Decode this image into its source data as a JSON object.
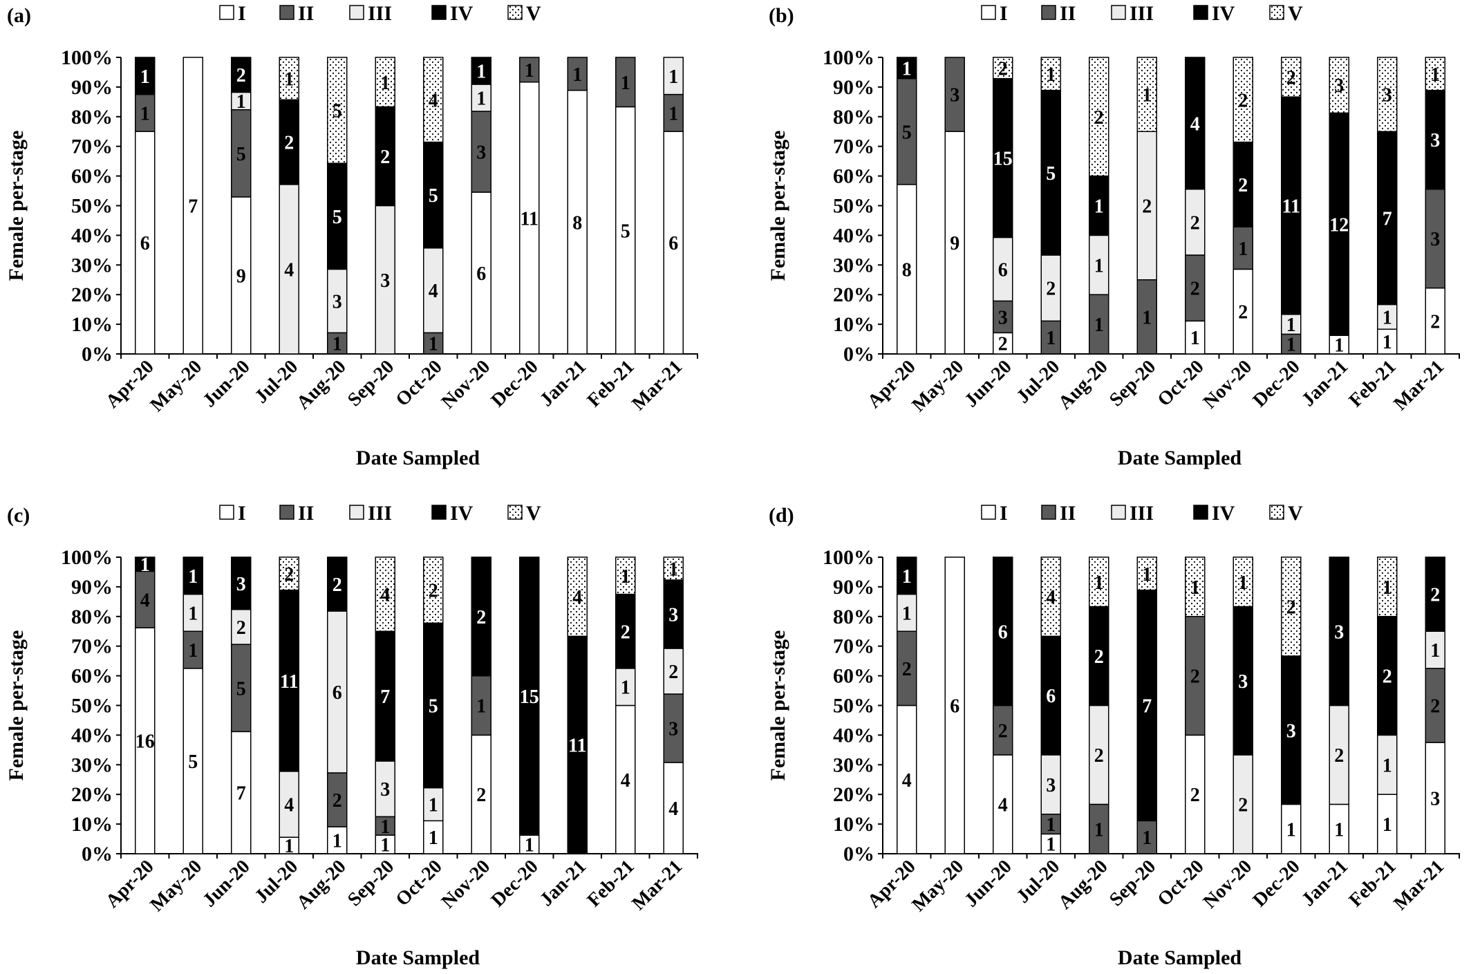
{
  "figure": {
    "panel_labels": [
      "(a)",
      "(b)",
      "(c)",
      "(d)"
    ],
    "colors": {
      "I": "#ffffff",
      "II": "#5a5a5a",
      "III": "#ececec",
      "IV": "#000000",
      "V": "dotted"
    }
  },
  "chart_data": [
    {
      "type": "bar",
      "stacked": "percent",
      "panel": "(a)",
      "xlabel": "Date Sampled",
      "ylabel": "Female per-stage",
      "ylim": [
        0,
        100
      ],
      "yticks": [
        "0%",
        "10%",
        "20%",
        "30%",
        "40%",
        "50%",
        "60%",
        "70%",
        "80%",
        "90%",
        "100%"
      ],
      "categories": [
        "Apr-20",
        "May-20",
        "Jun-20",
        "Jul-20",
        "Aug-20",
        "Sep-20",
        "Oct-20",
        "Nov-20",
        "Dec-20",
        "Jan-21",
        "Feb-21",
        "Mar-21"
      ],
      "series": [
        {
          "name": "I",
          "values": [
            6,
            7,
            9,
            0,
            0,
            0,
            0,
            6,
            11,
            8,
            5,
            6
          ]
        },
        {
          "name": "II",
          "values": [
            1,
            0,
            5,
            0,
            1,
            0,
            1,
            3,
            1,
            1,
            1,
            1
          ]
        },
        {
          "name": "III",
          "values": [
            0,
            0,
            1,
            4,
            3,
            3,
            4,
            1,
            0,
            0,
            0,
            1
          ]
        },
        {
          "name": "IV",
          "values": [
            1,
            0,
            2,
            2,
            5,
            2,
            5,
            1,
            0,
            0,
            0,
            0
          ]
        },
        {
          "name": "V",
          "values": [
            0,
            0,
            0,
            1,
            5,
            1,
            4,
            0,
            0,
            0,
            0,
            0
          ]
        }
      ],
      "legend": "top"
    },
    {
      "type": "bar",
      "stacked": "percent",
      "panel": "(b)",
      "xlabel": "Date Sampled",
      "ylabel": "Female per-stage",
      "ylim": [
        0,
        100
      ],
      "yticks": [
        "0%",
        "10%",
        "20%",
        "30%",
        "40%",
        "50%",
        "60%",
        "70%",
        "80%",
        "90%",
        "100%"
      ],
      "categories": [
        "Apr-20",
        "May-20",
        "Jun-20",
        "Jul-20",
        "Aug-20",
        "Sep-20",
        "Oct-20",
        "Nov-20",
        "Dec-20",
        "Jan-21",
        "Feb-21",
        "Mar-21"
      ],
      "series": [
        {
          "name": "I",
          "values": [
            8,
            9,
            2,
            0,
            0,
            0,
            1,
            2,
            0,
            1,
            1,
            2
          ]
        },
        {
          "name": "II",
          "values": [
            5,
            3,
            3,
            1,
            1,
            1,
            2,
            1,
            1,
            0,
            0,
            3
          ]
        },
        {
          "name": "III",
          "values": [
            0,
            0,
            6,
            2,
            1,
            2,
            2,
            0,
            1,
            0,
            1,
            0
          ]
        },
        {
          "name": "IV",
          "values": [
            1,
            0,
            15,
            5,
            1,
            0,
            4,
            2,
            11,
            12,
            7,
            3
          ]
        },
        {
          "name": "V",
          "values": [
            0,
            0,
            2,
            1,
            2,
            1,
            0,
            2,
            2,
            3,
            3,
            1
          ]
        }
      ],
      "legend": "top"
    },
    {
      "type": "bar",
      "stacked": "percent",
      "panel": "(c)",
      "xlabel": "Date Sampled",
      "ylabel": "Female per-stage",
      "ylim": [
        0,
        100
      ],
      "yticks": [
        "0%",
        "10%",
        "20%",
        "30%",
        "40%",
        "50%",
        "60%",
        "70%",
        "80%",
        "90%",
        "100%"
      ],
      "categories": [
        "Apr-20",
        "May-20",
        "Jun-20",
        "Jul-20",
        "Aug-20",
        "Sep-20",
        "Oct-20",
        "Nov-20",
        "Dec-20",
        "Jan-21",
        "Feb-21",
        "Mar-21"
      ],
      "series": [
        {
          "name": "I",
          "values": [
            16,
            5,
            7,
            1,
            1,
            1,
            1,
            2,
            1,
            0,
            4,
            4
          ]
        },
        {
          "name": "II",
          "values": [
            4,
            1,
            5,
            0,
            2,
            1,
            0,
            1,
            0,
            0,
            0,
            3
          ]
        },
        {
          "name": "III",
          "values": [
            0,
            1,
            2,
            4,
            6,
            3,
            1,
            0,
            0,
            0,
            1,
            2
          ]
        },
        {
          "name": "IV",
          "values": [
            1,
            1,
            3,
            11,
            2,
            7,
            5,
            2,
            15,
            11,
            2,
            3
          ]
        },
        {
          "name": "V",
          "values": [
            0,
            0,
            0,
            2,
            0,
            4,
            2,
            0,
            0,
            4,
            1,
            1
          ]
        }
      ],
      "legend": "top"
    },
    {
      "type": "bar",
      "stacked": "percent",
      "panel": "(d)",
      "xlabel": "Date Sampled",
      "ylabel": "Female per-stage",
      "ylim": [
        0,
        100
      ],
      "yticks": [
        "0%",
        "10%",
        "20%",
        "30%",
        "40%",
        "50%",
        "60%",
        "70%",
        "80%",
        "90%",
        "100%"
      ],
      "categories": [
        "Apr-20",
        "May-20",
        "Jun-20",
        "Jul-20",
        "Aug-20",
        "Sep-20",
        "Oct-20",
        "Nov-20",
        "Dec-20",
        "Jan-21",
        "Feb-21",
        "Mar-21"
      ],
      "series": [
        {
          "name": "I",
          "values": [
            4,
            6,
            4,
            1,
            0,
            0,
            2,
            0,
            1,
            1,
            1,
            3
          ]
        },
        {
          "name": "II",
          "values": [
            2,
            0,
            2,
            1,
            1,
            1,
            2,
            0,
            0,
            0,
            0,
            2
          ]
        },
        {
          "name": "III",
          "values": [
            1,
            0,
            0,
            3,
            2,
            0,
            0,
            2,
            0,
            2,
            1,
            1
          ]
        },
        {
          "name": "IV",
          "values": [
            1,
            0,
            6,
            6,
            2,
            7,
            0,
            3,
            3,
            3,
            2,
            2
          ]
        },
        {
          "name": "V",
          "values": [
            0,
            0,
            0,
            4,
            1,
            1,
            1,
            1,
            2,
            0,
            1,
            0
          ]
        }
      ],
      "legend": "top"
    }
  ]
}
